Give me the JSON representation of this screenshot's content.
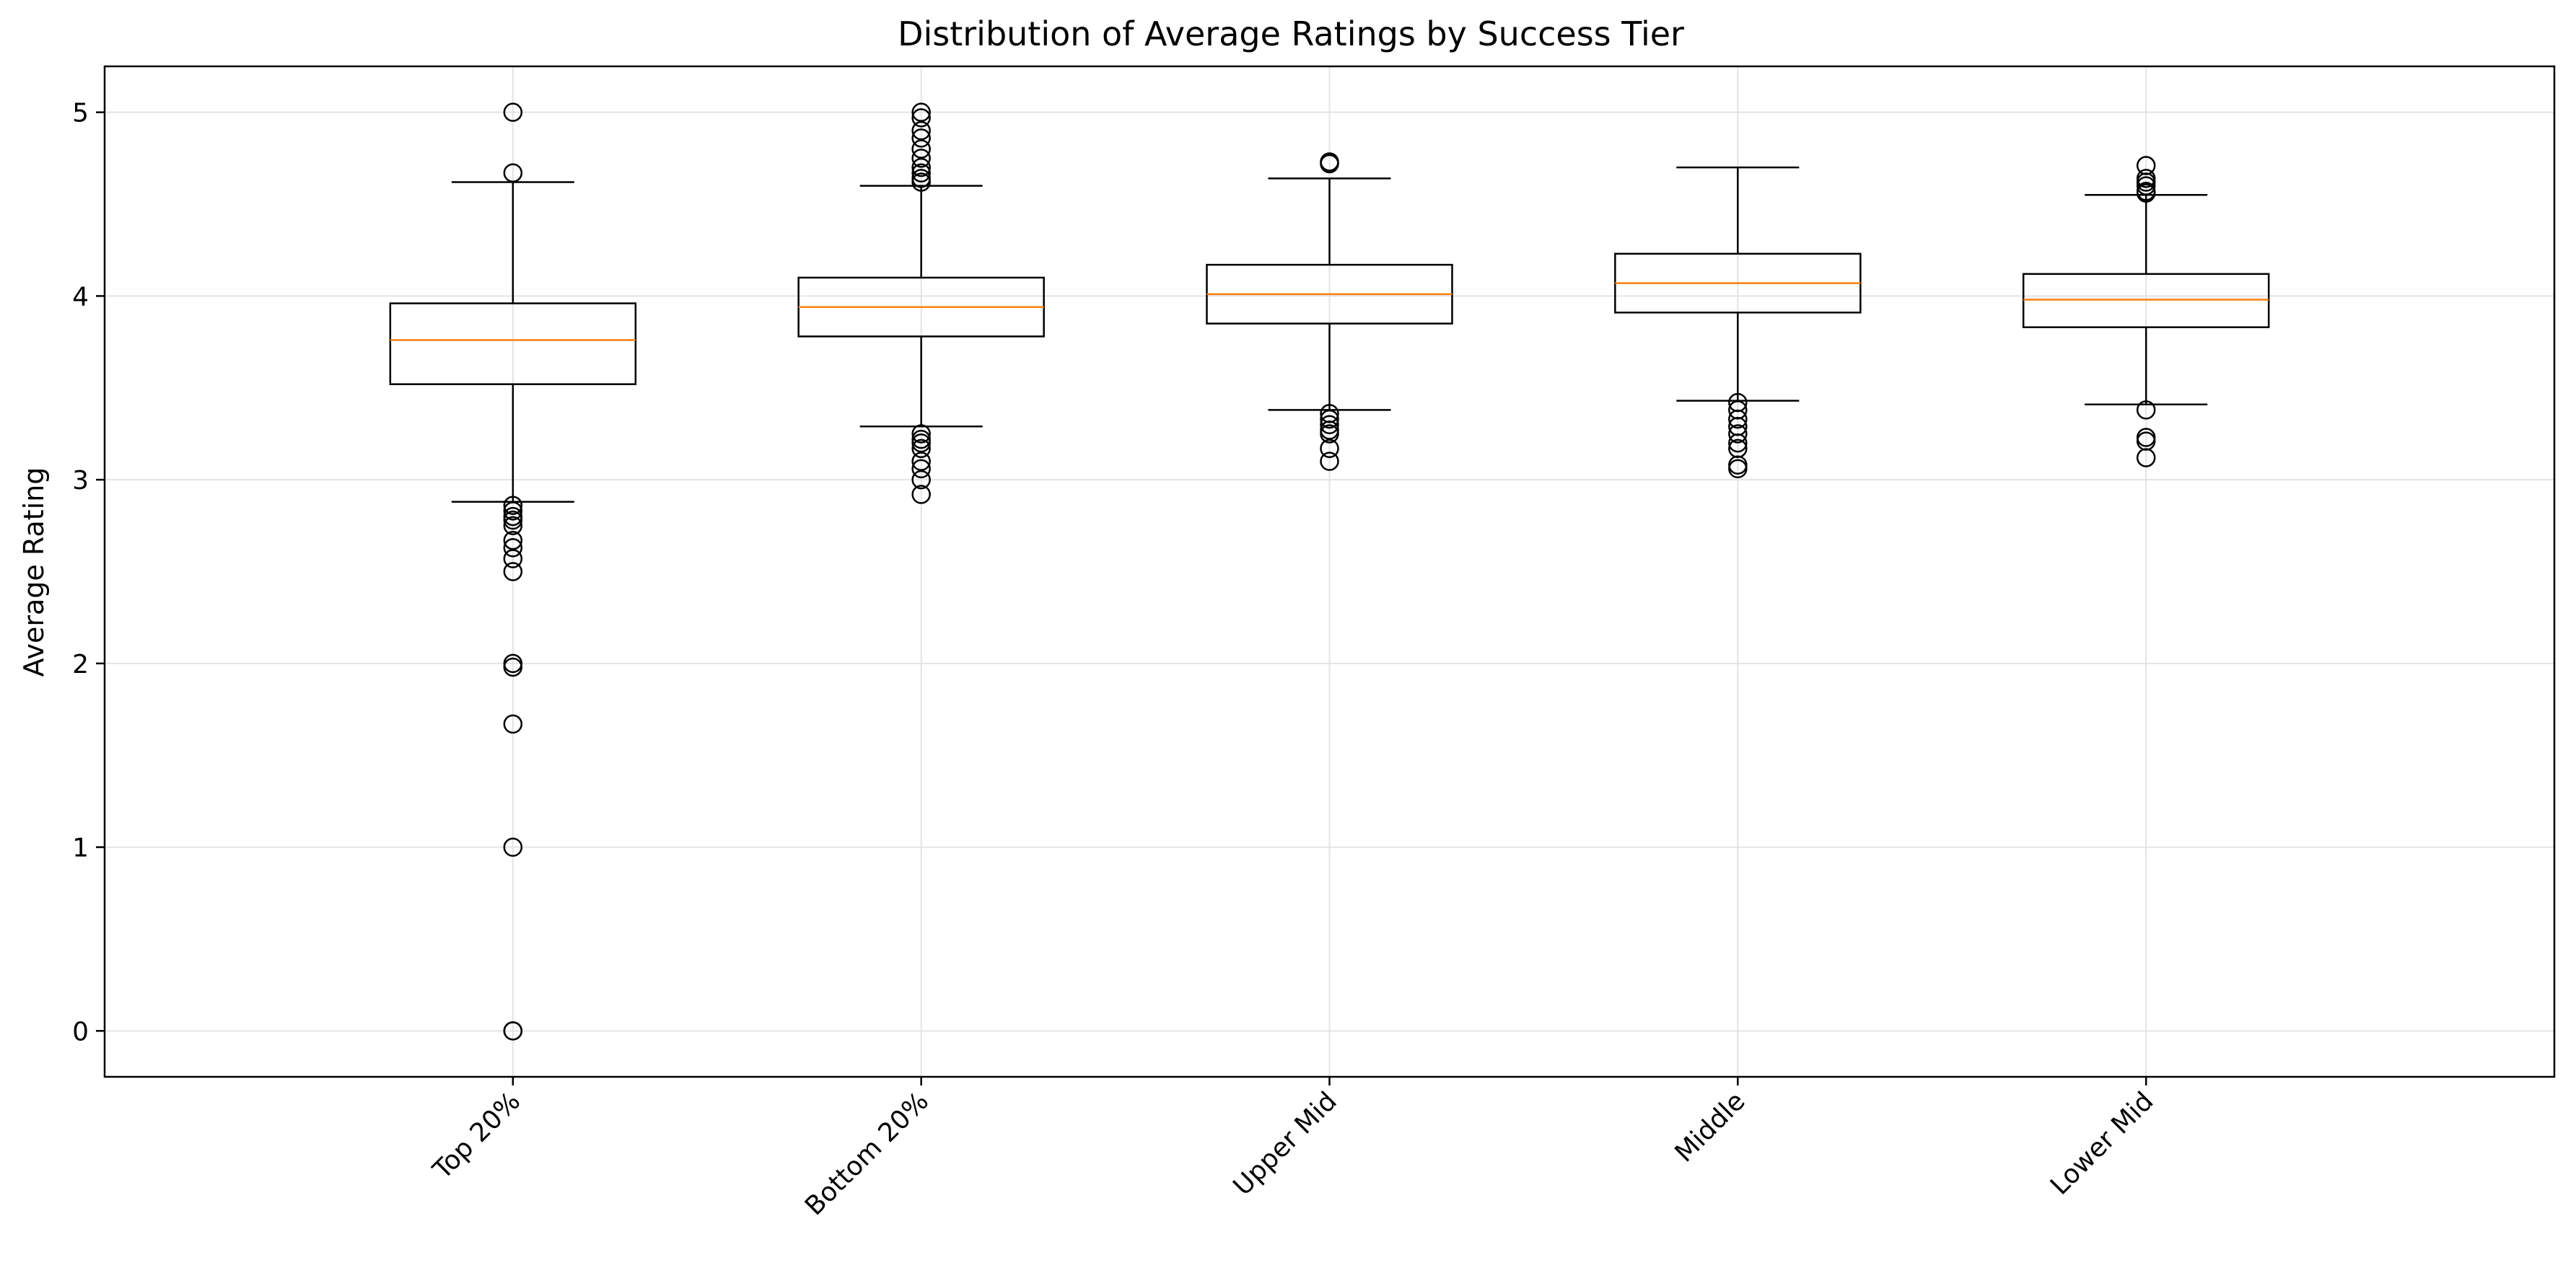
{
  "chart_data": {
    "type": "box",
    "title": "Distribution of Average Ratings by Success Tier",
    "xlabel": "",
    "ylabel": "Average Rating",
    "ylim": [
      -0.25,
      5.25
    ],
    "yticks": [
      0,
      1,
      2,
      3,
      4,
      5
    ],
    "grid": true,
    "legend": "none",
    "categories": [
      "Top 20%",
      "Bottom 20%",
      "Upper Mid",
      "Middle",
      "Lower Mid"
    ],
    "boxes": [
      {
        "category": "Top 20%",
        "whisker_low": 2.88,
        "q1": 3.52,
        "median": 3.76,
        "q3": 3.96,
        "whisker_high": 4.62,
        "outliers": [
          5.0,
          4.67,
          2.86,
          2.83,
          2.8,
          2.78,
          2.75,
          2.67,
          2.63,
          2.57,
          2.5,
          2.0,
          1.98,
          1.67,
          1.0,
          0.0,
          0.0
        ]
      },
      {
        "category": "Bottom 20%",
        "whisker_low": 3.29,
        "q1": 3.78,
        "median": 3.94,
        "q3": 4.1,
        "whisker_high": 4.6,
        "outliers": [
          5.0,
          4.97,
          4.9,
          4.86,
          4.8,
          4.75,
          4.7,
          4.67,
          4.64,
          4.62,
          3.25,
          3.22,
          3.2,
          3.17,
          3.1,
          3.06,
          3.0,
          2.92
        ]
      },
      {
        "category": "Upper Mid",
        "whisker_low": 3.38,
        "q1": 3.85,
        "median": 4.01,
        "q3": 4.17,
        "whisker_high": 4.64,
        "outliers": [
          4.73,
          4.72,
          3.36,
          3.33,
          3.3,
          3.27,
          3.25,
          3.17,
          3.1
        ]
      },
      {
        "category": "Middle",
        "whisker_low": 3.43,
        "q1": 3.91,
        "median": 4.07,
        "q3": 4.23,
        "whisker_high": 4.7,
        "outliers": [
          3.42,
          3.38,
          3.33,
          3.29,
          3.25,
          3.2,
          3.17,
          3.08,
          3.06
        ]
      },
      {
        "category": "Lower Mid",
        "whisker_low": 3.41,
        "q1": 3.83,
        "median": 3.98,
        "q3": 4.12,
        "whisker_high": 4.55,
        "outliers": [
          4.71,
          4.64,
          4.62,
          4.6,
          4.57,
          4.56,
          3.38,
          3.23,
          3.21,
          3.12
        ]
      }
    ]
  },
  "colors": {
    "box": "#000000",
    "median": "#ff7f0e",
    "grid": "#e3e3e3",
    "background": "#ffffff"
  }
}
